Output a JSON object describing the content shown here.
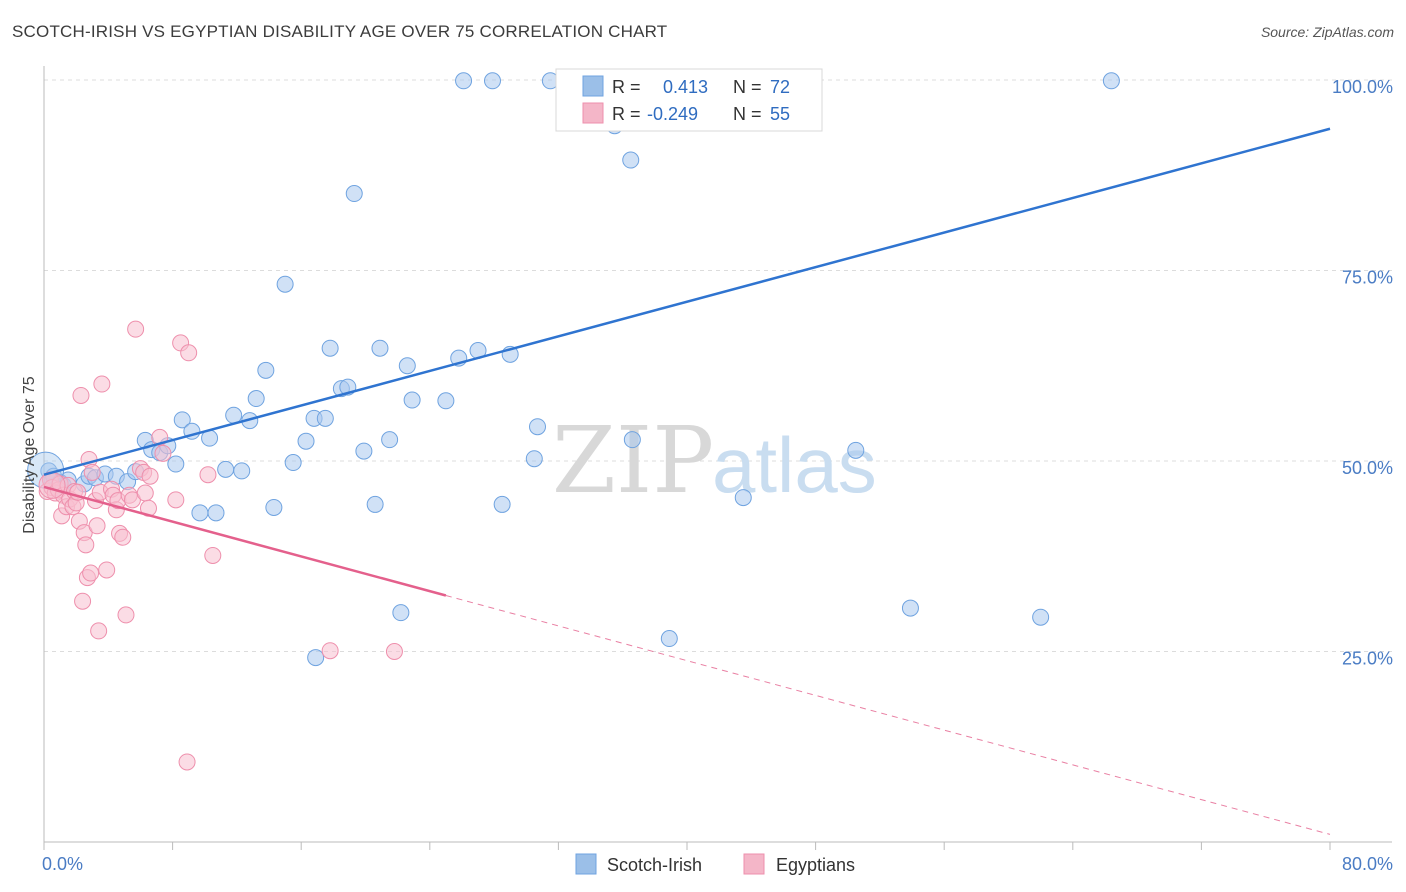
{
  "title": "SCOTCH-IRISH VS EGYPTIAN DISABILITY AGE OVER 75 CORRELATION CHART",
  "source": "Source: ZipAtlas.com",
  "watermark": {
    "zip": "ZIP",
    "atlas": "atlas"
  },
  "legend_top": {
    "rows": [
      {
        "r_label": "R =",
        "r_value": "0.413",
        "n_label": "N =",
        "n_value": "72",
        "color": "#9bbfe8"
      },
      {
        "r_label": "R =",
        "r_value": "-0.249",
        "n_label": "N =",
        "n_value": "55",
        "color": "#f4b6c8"
      }
    ]
  },
  "legend_bottom": {
    "items": [
      {
        "label": "Scotch-Irish",
        "color": "#9bbfe8"
      },
      {
        "label": "Egyptians",
        "color": "#f4b6c8"
      }
    ]
  },
  "chart_data": {
    "type": "scatter",
    "title": "SCOTCH-IRISH VS EGYPTIAN DISABILITY AGE OVER 75 CORRELATION CHART",
    "xlabel": "",
    "ylabel": "Disability Age Over 75",
    "xlim": [
      0,
      80
    ],
    "ylim": [
      0,
      102
    ],
    "x_tick_labels": [
      {
        "value": 0,
        "label": "0.0%"
      },
      {
        "value": 80,
        "label": "80.0%"
      }
    ],
    "y_tick_labels": [
      {
        "value": 25,
        "label": "25.0%"
      },
      {
        "value": 50,
        "label": "50.0%"
      },
      {
        "value": 75,
        "label": "75.0%"
      },
      {
        "value": 100,
        "label": "100.0%"
      }
    ],
    "grid": true,
    "legend_position": "top-center",
    "series": [
      {
        "name": "Scotch-Irish",
        "color": "#6fa3e0",
        "fill": "#a9c9ee",
        "trend": {
          "x0": 0,
          "y0": 48.2,
          "x1": 80,
          "y1": 93.6,
          "color": "#2f74d0"
        },
        "points": [
          [
            0.3,
            48.7
          ],
          [
            0.5,
            47.5
          ],
          [
            0.6,
            48.0
          ],
          [
            0.8,
            46.5
          ],
          [
            1.0,
            47.2
          ],
          [
            1.2,
            46.8
          ],
          [
            1.5,
            47.5
          ],
          [
            2.5,
            47.0
          ],
          [
            2.8,
            48.0
          ],
          [
            3.2,
            47.8
          ],
          [
            3.8,
            48.3
          ],
          [
            4.5,
            48.0
          ],
          [
            5.2,
            47.3
          ],
          [
            5.7,
            48.6
          ],
          [
            6.3,
            52.7
          ],
          [
            6.7,
            51.5
          ],
          [
            7.2,
            51.1
          ],
          [
            7.7,
            52.0
          ],
          [
            8.2,
            49.6
          ],
          [
            8.6,
            55.4
          ],
          [
            9.2,
            53.9
          ],
          [
            9.7,
            43.2
          ],
          [
            10.3,
            53.0
          ],
          [
            10.7,
            43.2
          ],
          [
            11.3,
            48.9
          ],
          [
            11.8,
            56.0
          ],
          [
            12.3,
            48.7
          ],
          [
            12.8,
            55.3
          ],
          [
            13.2,
            58.2
          ],
          [
            13.8,
            61.9
          ],
          [
            14.3,
            43.9
          ],
          [
            15.0,
            73.2
          ],
          [
            15.5,
            49.8
          ],
          [
            16.3,
            52.6
          ],
          [
            16.8,
            55.6
          ],
          [
            17.5,
            55.6
          ],
          [
            16.9,
            24.2
          ],
          [
            17.8,
            64.8
          ],
          [
            18.5,
            59.5
          ],
          [
            18.9,
            59.7
          ],
          [
            19.3,
            85.1
          ],
          [
            19.9,
            51.3
          ],
          [
            20.6,
            44.3
          ],
          [
            20.9,
            64.8
          ],
          [
            21.5,
            52.8
          ],
          [
            22.2,
            30.1
          ],
          [
            22.6,
            62.5
          ],
          [
            22.9,
            58.0
          ],
          [
            25.0,
            57.9
          ],
          [
            25.8,
            63.5
          ],
          [
            26.1,
            99.9
          ],
          [
            27.0,
            64.5
          ],
          [
            27.9,
            99.9
          ],
          [
            28.5,
            44.3
          ],
          [
            29.0,
            64.0
          ],
          [
            30.5,
            50.3
          ],
          [
            30.7,
            54.5
          ],
          [
            31.5,
            99.9
          ],
          [
            32.8,
            99.9
          ],
          [
            35.0,
            99.9
          ],
          [
            35.5,
            94.0
          ],
          [
            36.5,
            89.5
          ],
          [
            36.6,
            52.8
          ],
          [
            38.0,
            99.9
          ],
          [
            38.9,
            26.7
          ],
          [
            42.1,
            99.9
          ],
          [
            43.5,
            45.2
          ],
          [
            50.5,
            51.4
          ],
          [
            53.9,
            30.7
          ],
          [
            62.0,
            29.5
          ],
          [
            66.4,
            99.9
          ],
          [
            34.0,
            99.9
          ]
        ]
      },
      {
        "name": "Egyptians",
        "color": "#ee8fac",
        "fill": "#f7bfd0",
        "trend": {
          "x0": 0,
          "y0": 46.6,
          "x1": 80,
          "y1": 1.0,
          "solid_until_x": 25.0,
          "color": "#e4608c"
        },
        "points": [
          [
            0.2,
            46.0
          ],
          [
            0.4,
            47.5
          ],
          [
            0.5,
            46.5
          ],
          [
            0.7,
            45.8
          ],
          [
            0.9,
            46.2
          ],
          [
            1.0,
            47.0
          ],
          [
            1.1,
            42.8
          ],
          [
            1.2,
            45.5
          ],
          [
            1.4,
            44.0
          ],
          [
            1.5,
            46.8
          ],
          [
            1.6,
            45.0
          ],
          [
            1.8,
            44.0
          ],
          [
            1.9,
            46.0
          ],
          [
            2.0,
            44.5
          ],
          [
            2.1,
            45.9
          ],
          [
            2.2,
            42.1
          ],
          [
            2.3,
            58.6
          ],
          [
            2.4,
            31.6
          ],
          [
            2.5,
            40.6
          ],
          [
            2.6,
            39.0
          ],
          [
            2.7,
            34.7
          ],
          [
            2.8,
            50.2
          ],
          [
            2.9,
            35.3
          ],
          [
            3.0,
            48.5
          ],
          [
            3.2,
            44.8
          ],
          [
            3.3,
            41.5
          ],
          [
            3.4,
            27.7
          ],
          [
            3.5,
            45.9
          ],
          [
            3.6,
            60.1
          ],
          [
            3.9,
            35.7
          ],
          [
            4.2,
            46.3
          ],
          [
            4.3,
            45.5
          ],
          [
            4.5,
            43.6
          ],
          [
            4.6,
            44.8
          ],
          [
            4.7,
            40.5
          ],
          [
            4.9,
            40.0
          ],
          [
            5.1,
            29.8
          ],
          [
            5.3,
            45.5
          ],
          [
            5.5,
            44.9
          ],
          [
            5.7,
            67.3
          ],
          [
            6.0,
            49.0
          ],
          [
            6.2,
            48.5
          ],
          [
            6.3,
            45.8
          ],
          [
            6.5,
            43.8
          ],
          [
            6.6,
            48.0
          ],
          [
            7.2,
            53.1
          ],
          [
            7.4,
            51.0
          ],
          [
            8.2,
            44.9
          ],
          [
            8.5,
            65.5
          ],
          [
            8.9,
            10.5
          ],
          [
            9.0,
            64.2
          ],
          [
            10.2,
            48.2
          ],
          [
            10.5,
            37.6
          ],
          [
            17.8,
            25.1
          ],
          [
            21.8,
            25.0
          ]
        ]
      }
    ]
  }
}
